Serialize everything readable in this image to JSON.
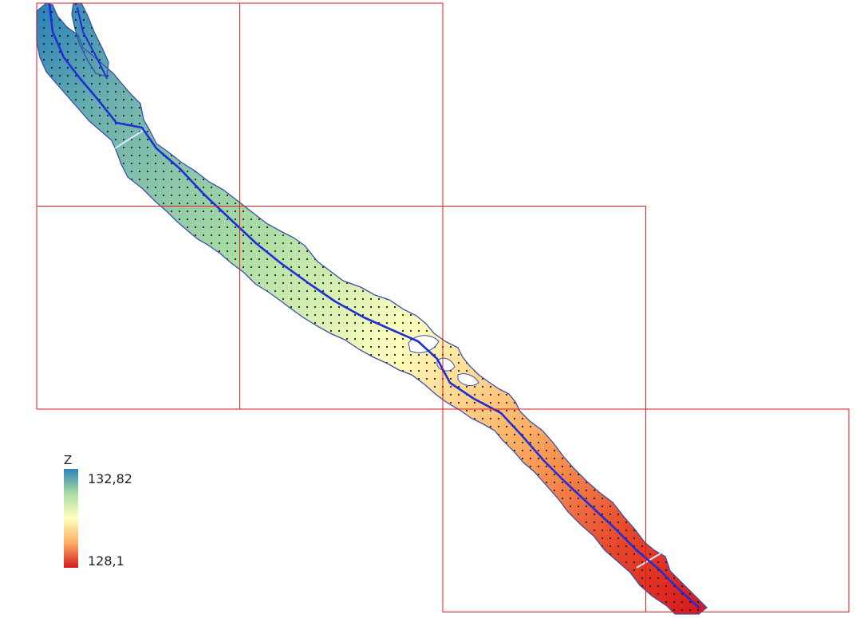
{
  "legend": {
    "field": "Z",
    "max_label": "132,82",
    "min_label": "128,1",
    "ramp_colors": [
      "#2b83ba",
      "#abdda4",
      "#ffffbf",
      "#fdae61",
      "#d7191c"
    ]
  },
  "styles": {
    "grid_color": "#e31a1c",
    "centerline_color": "#1f2fd6",
    "outline_color": "#3a4fb0",
    "point_color": "#1a1a1a"
  },
  "tiles": {
    "rows": 3,
    "cols": 4,
    "present": [
      [
        0,
        0
      ],
      [
        0,
        1
      ],
      [
        1,
        0
      ],
      [
        1,
        1
      ],
      [
        1,
        2
      ],
      [
        2,
        2
      ],
      [
        2,
        3
      ]
    ]
  }
}
